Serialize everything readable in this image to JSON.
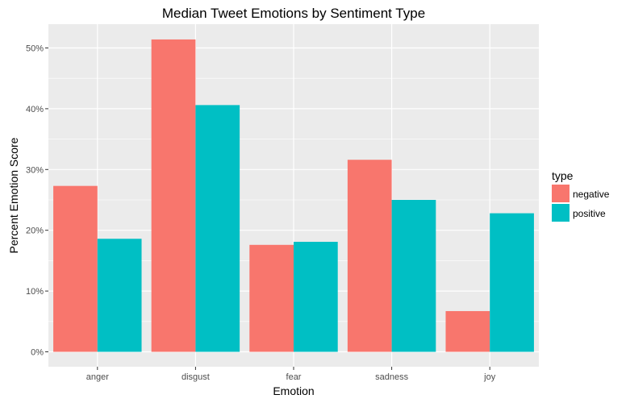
{
  "chart_data": {
    "type": "bar",
    "title": "Median Tweet Emotions by Sentiment Type",
    "xlabel": "Emotion",
    "ylabel": "Percent Emotion Score",
    "categories": [
      "anger",
      "disgust",
      "fear",
      "sadness",
      "joy"
    ],
    "series": [
      {
        "name": "negative",
        "color": "#F8766D",
        "values": [
          27.3,
          51.4,
          17.6,
          31.6,
          6.7
        ]
      },
      {
        "name": "positive",
        "color": "#00BFC4",
        "values": [
          18.6,
          40.6,
          18.1,
          25.0,
          22.8
        ]
      }
    ],
    "ylim": [
      0,
      54
    ],
    "yticks": [
      0,
      10,
      20,
      30,
      40,
      50
    ],
    "ytick_labels": [
      "0%",
      "10%",
      "20%",
      "30%",
      "40%",
      "50%"
    ],
    "legend": {
      "title": "type",
      "position": "right"
    },
    "grid": true,
    "panel_background": "#EBEBEB",
    "grid_color": "#FFFFFF"
  }
}
